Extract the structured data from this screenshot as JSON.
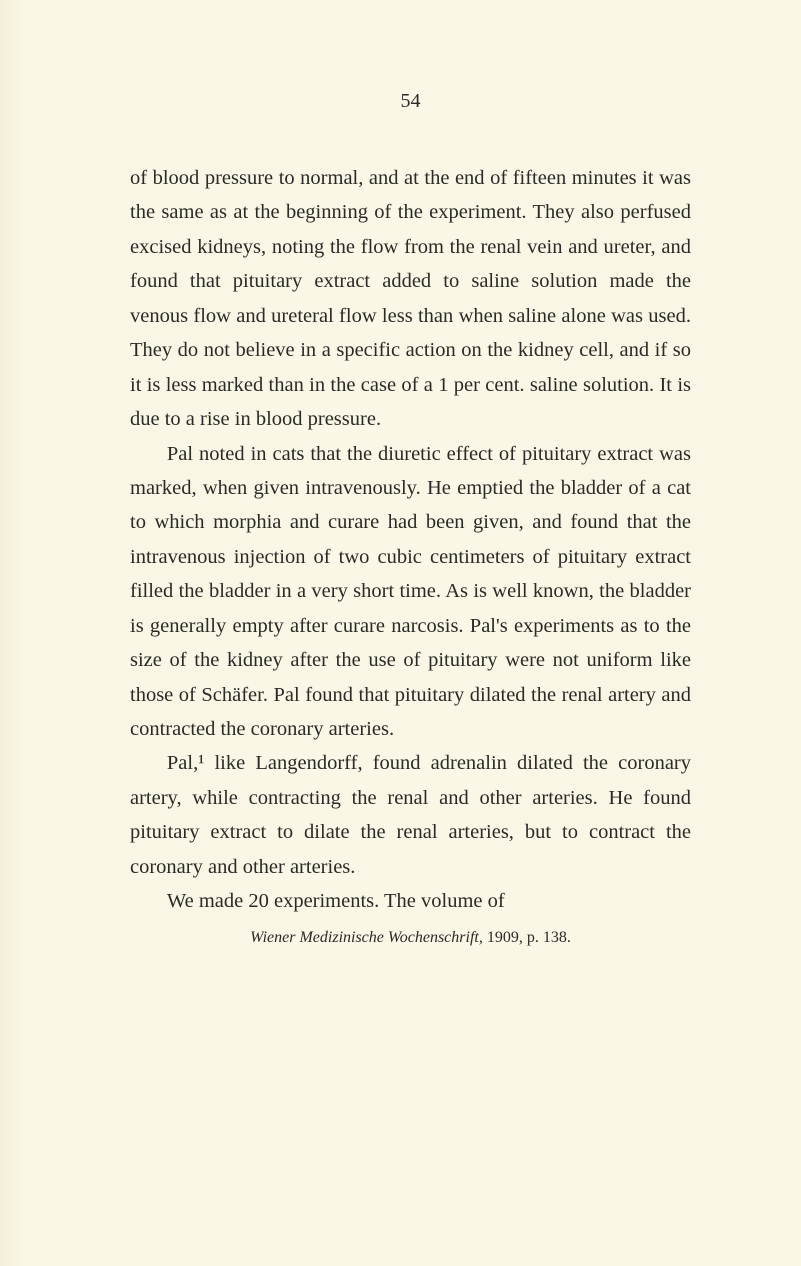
{
  "page_number": "54",
  "paragraphs": [
    "of blood pressure to normal, and at the end of fifteen minutes it was the same as at the beginning of the experiment. They also perfused excised kidneys, noting the flow from the renal vein and ureter, and found that pituitary extract added to saline solution made the venous flow and ureteral flow less than when saline alone was used. They do not believe in a specific action on the kidney cell, and if so it is less marked than in the case of a 1 per cent. saline solution. It is due to a rise in blood pressure.",
    "Pal noted in cats that the diuretic effect of pituitary extract was marked, when given intravenously. He emptied the bladder of a cat to which morphia and curare had been given, and found that the intravenous injection of two cubic centimeters of pituitary extract filled the bladder in a very short time. As is well known, the bladder is generally empty after curare narcosis. Pal's experiments as to the size of the kidney after the use of pituitary were not uniform like those of Schäfer. Pal found that pituitary dilated the renal artery and contracted the coronary arteries.",
    "Pal,¹ like Langendorff, found adrenalin dilated the coronary artery, while contracting the renal and other arteries. He found pituitary extract to dilate the renal arteries, but to contract the coronary and other arteries.",
    "We made 20 experiments. The volume of"
  ],
  "footnote_italic": "Wiener Medizinische Wochenschrift,",
  "footnote_rest": " 1909, p. 138."
}
